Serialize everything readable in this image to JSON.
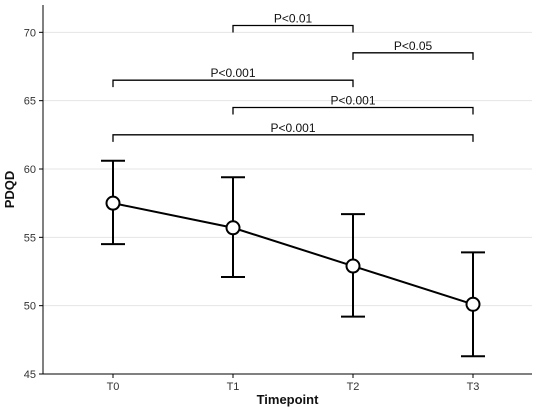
{
  "chart_data": {
    "type": "line",
    "categories": [
      "T0",
      "T1",
      "T2",
      "T3"
    ],
    "series": [
      {
        "values": [
          57.5,
          55.7,
          52.9,
          50.1
        ],
        "error_upper": [
          60.6,
          59.4,
          56.7,
          53.9
        ],
        "error_lower": [
          54.5,
          52.1,
          49.2,
          46.3
        ]
      }
    ],
    "xlabel": "Timepoint",
    "ylabel": "PDQD",
    "ylim": [
      45,
      72
    ],
    "yticks": [
      45,
      50,
      55,
      60,
      65,
      70
    ],
    "grid": "horizontal",
    "significance": [
      {
        "from": "T1",
        "to": "T2",
        "level": 70.5,
        "label": "P<0.01"
      },
      {
        "from": "T2",
        "to": "T3",
        "level": 68.5,
        "label": "P<0.05"
      },
      {
        "from": "T0",
        "to": "T2",
        "level": 66.5,
        "label": "P<0.001"
      },
      {
        "from": "T1",
        "to": "T3",
        "level": 64.5,
        "label": "P<0.001"
      },
      {
        "from": "T0",
        "to": "T3",
        "level": 62.5,
        "label": "P<0.001"
      }
    ],
    "colors": {
      "line": "#000000",
      "grid": "#e5e5e5",
      "marker_fill": "#ffffff"
    }
  }
}
